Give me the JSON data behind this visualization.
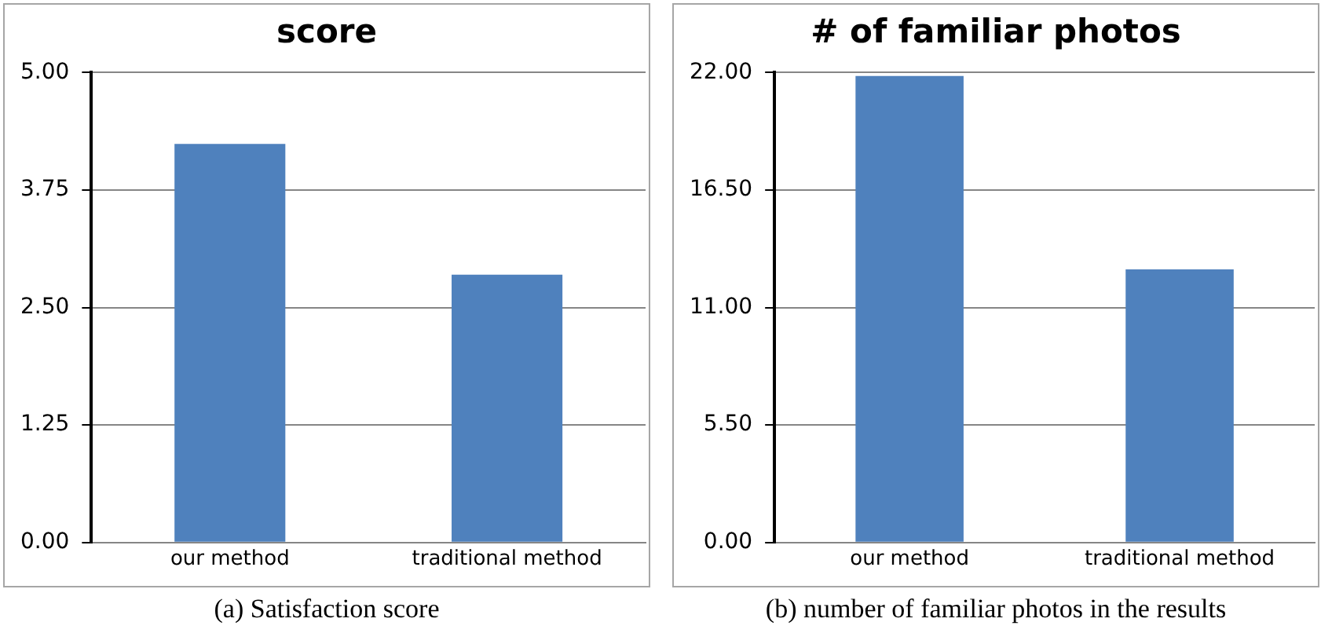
{
  "chart_data": [
    {
      "type": "bar",
      "title": "score",
      "categories": [
        "our method",
        "traditional method"
      ],
      "values": [
        4.24,
        2.85
      ],
      "color": "#4f81bd",
      "ylim": [
        0,
        5
      ],
      "yticks": [
        {
          "value": 0,
          "label": "0.00"
        },
        {
          "value": 1.25,
          "label": "1.25"
        },
        {
          "value": 2.5,
          "label": "2.50"
        },
        {
          "value": 3.75,
          "label": "3.75"
        },
        {
          "value": 5,
          "label": "5.00"
        }
      ],
      "grid": "y",
      "annotations": [
        "(a)  Satisfaction score"
      ]
    },
    {
      "type": "bar",
      "title": "# of familiar photos",
      "categories": [
        "our method",
        "traditional method"
      ],
      "values": [
        21.84,
        12.79
      ],
      "color": "#4f81bd",
      "ylim": [
        0,
        22
      ],
      "yticks": [
        {
          "value": 0,
          "label": "0.00"
        },
        {
          "value": 5.5,
          "label": "5.50"
        },
        {
          "value": 11,
          "label": "11.00"
        },
        {
          "value": 16.5,
          "label": "16.50"
        },
        {
          "value": 22,
          "label": "22.00"
        }
      ],
      "grid": "y",
      "annotations": [
        "(b)  number of familiar photos in the results"
      ]
    }
  ]
}
